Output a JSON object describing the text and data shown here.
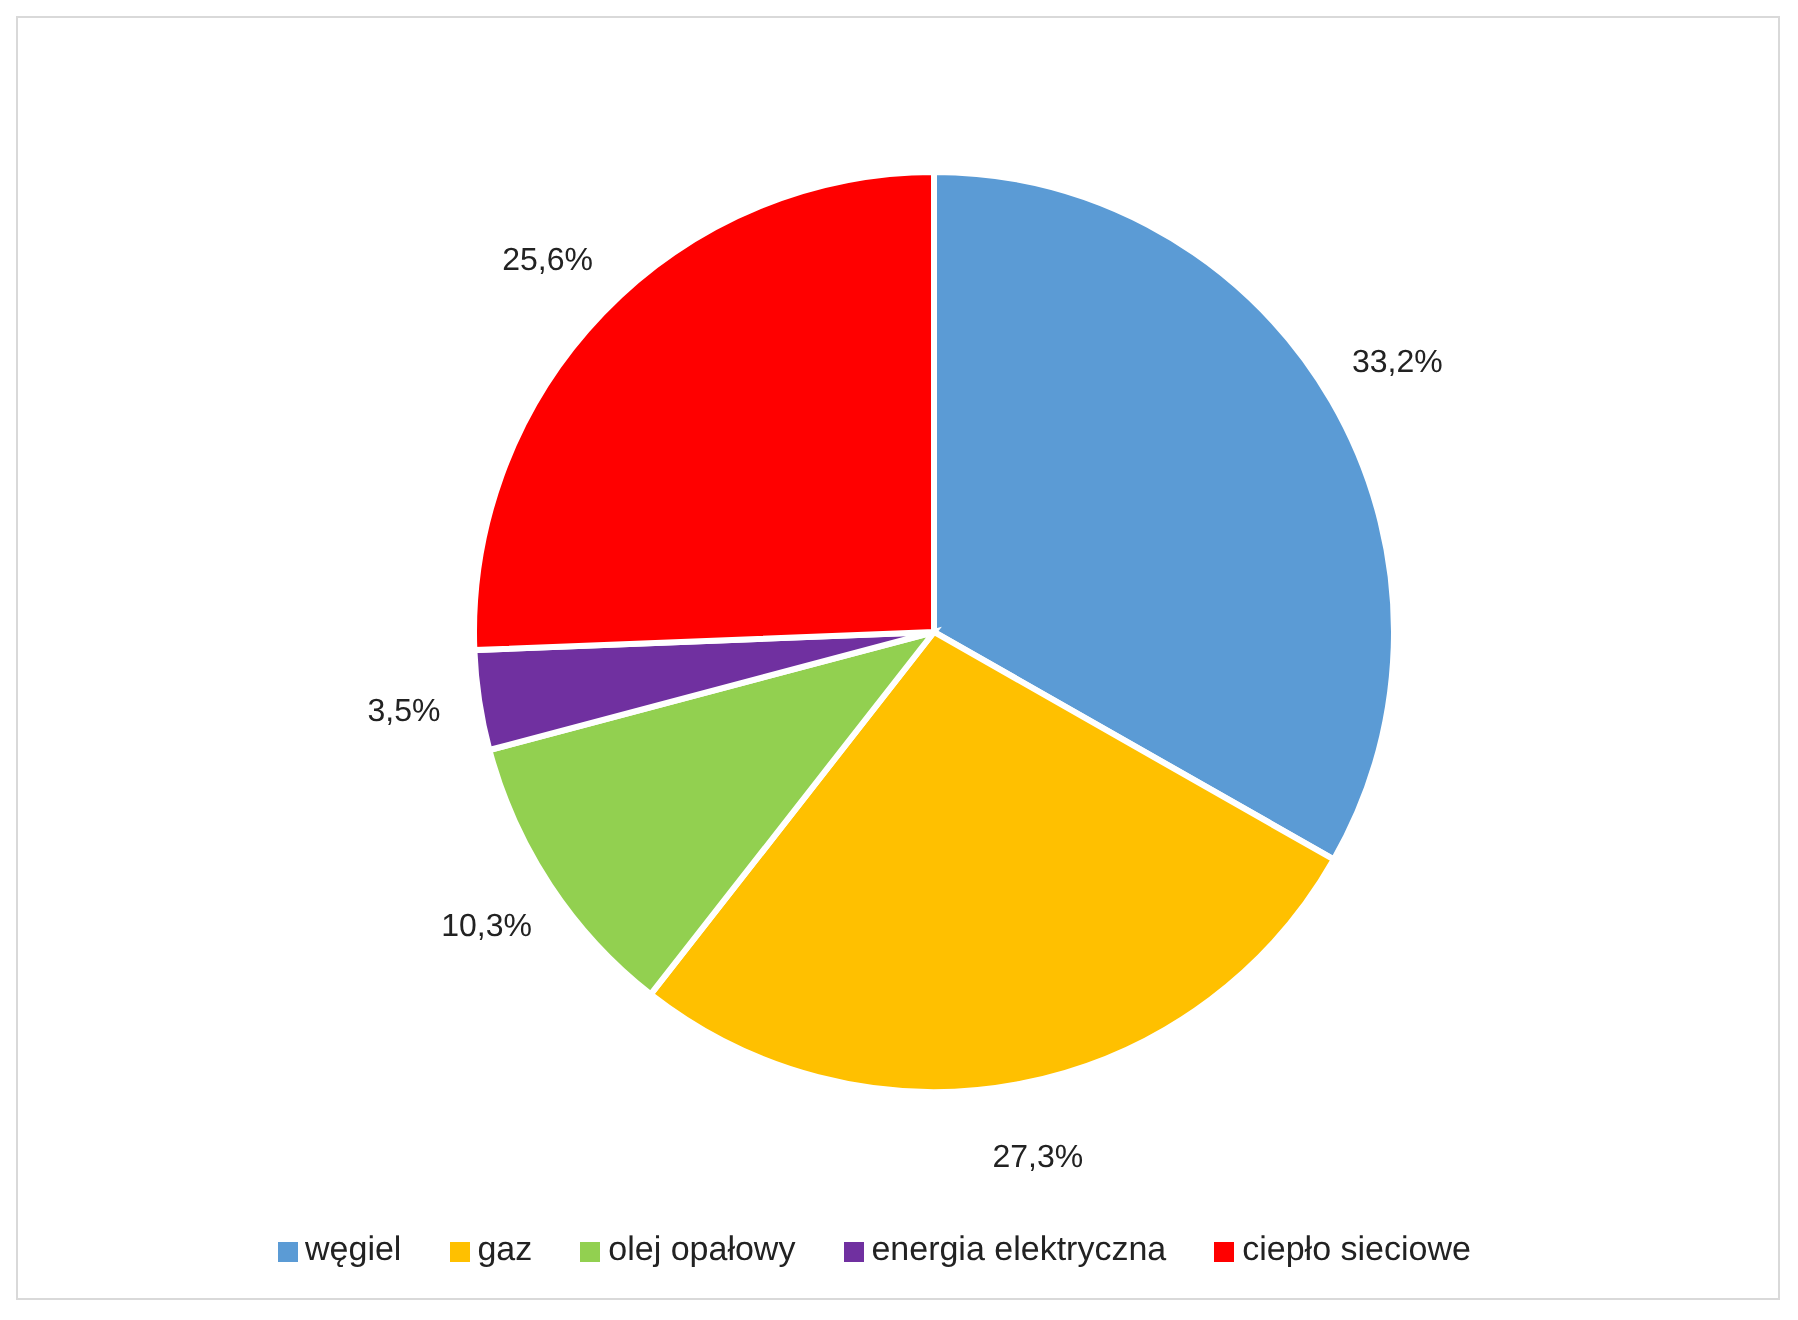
{
  "chart_data": {
    "type": "pie",
    "categories": [
      "węgiel",
      "gaz",
      "olej opałowy",
      "energia elektryczna",
      "ciepło sieciowe"
    ],
    "values": [
      33.2,
      27.3,
      10.3,
      3.5,
      25.6
    ],
    "value_labels": [
      "33,2%",
      "27,3%",
      "10,3%",
      "3,5%",
      "25,6%"
    ],
    "colors": [
      "#5b9bd5",
      "#ffc000",
      "#92d050",
      "#7030a0",
      "#ff0000"
    ],
    "legend": "bottom"
  }
}
